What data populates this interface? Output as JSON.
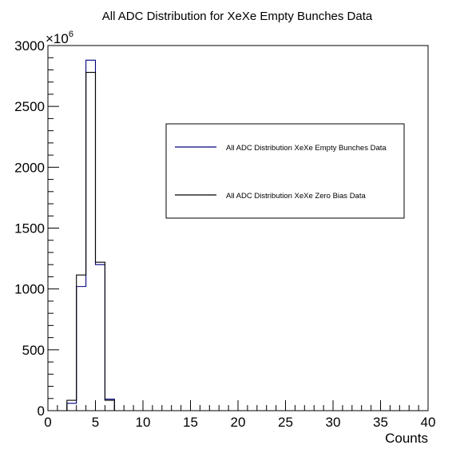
{
  "chart_data": {
    "type": "histogram",
    "title": "All ADC Distribution for XeXe Empty Bunches Data",
    "xlabel": "Counts",
    "ylabel": "",
    "y_multiplier_label": "×10",
    "y_multiplier_exponent": "6",
    "xlim": [
      0,
      40
    ],
    "ylim": [
      0,
      3000
    ],
    "bin_width": 1,
    "x_ticks": [
      0,
      5,
      10,
      15,
      20,
      25,
      30,
      35,
      40
    ],
    "y_ticks": [
      0,
      500,
      1000,
      1500,
      2000,
      2500,
      3000
    ],
    "grid": false,
    "legend_placement": "upper-right",
    "series": [
      {
        "name": "All ADC Distribution XeXe Empty Bunches Data",
        "color": "#000080",
        "bin_edges_start": 0,
        "values": [
          0,
          0,
          60,
          1020,
          2880,
          1200,
          95,
          0,
          0,
          0,
          0,
          0,
          0,
          0,
          0,
          0,
          0,
          0,
          0,
          0,
          0,
          0,
          0,
          0,
          0,
          0,
          0,
          0,
          0,
          0,
          0,
          0,
          0,
          0,
          0,
          0,
          0,
          0,
          0,
          0
        ]
      },
      {
        "name": "All ADC Distribution XeXe Zero Bias Data",
        "color": "#000000",
        "bin_edges_start": 0,
        "values": [
          0,
          0,
          85,
          1115,
          2780,
          1220,
          85,
          0,
          0,
          0,
          0,
          0,
          0,
          0,
          0,
          0,
          0,
          0,
          0,
          0,
          0,
          0,
          0,
          0,
          0,
          0,
          0,
          0,
          0,
          0,
          0,
          0,
          0,
          0,
          0,
          0,
          0,
          0,
          0,
          0
        ]
      }
    ]
  }
}
